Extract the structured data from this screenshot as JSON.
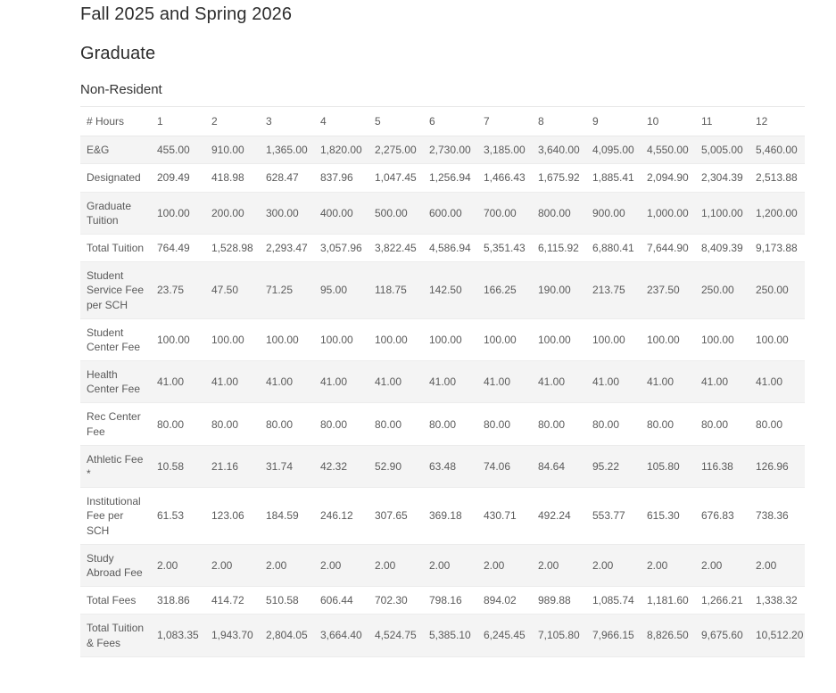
{
  "page": {
    "title": "Fall 2025 and Spring 2026",
    "level_heading": "Graduate",
    "residency_heading": "Non-Resident"
  },
  "colors": {
    "row_stripe": "#f4f4f4",
    "row_border": "#ececec",
    "table_text": "#5a5a5a",
    "heading_text": "#2d2d2d"
  },
  "table": {
    "header": [
      "# Hours",
      "1",
      "2",
      "3",
      "4",
      "5",
      "6",
      "7",
      "8",
      "9",
      "10",
      "11",
      "12"
    ],
    "rows": [
      {
        "label": "E&G",
        "values": [
          "455.00",
          "910.00",
          "1,365.00",
          "1,820.00",
          "2,275.00",
          "2,730.00",
          "3,185.00",
          "3,640.00",
          "4,095.00",
          "4,550.00",
          "5,005.00",
          "5,460.00"
        ]
      },
      {
        "label": "Designated",
        "values": [
          "209.49",
          "418.98",
          "628.47",
          "837.96",
          "1,047.45",
          "1,256.94",
          "1,466.43",
          "1,675.92",
          "1,885.41",
          "2,094.90",
          "2,304.39",
          "2,513.88"
        ]
      },
      {
        "label": "Graduate Tuition",
        "values": [
          "100.00",
          "200.00",
          "300.00",
          "400.00",
          "500.00",
          "600.00",
          "700.00",
          "800.00",
          "900.00",
          "1,000.00",
          "1,100.00",
          "1,200.00"
        ]
      },
      {
        "label": "Total Tuition",
        "values": [
          "764.49",
          "1,528.98",
          "2,293.47",
          "3,057.96",
          "3,822.45",
          "4,586.94",
          "5,351.43",
          "6,115.92",
          "6,880.41",
          "7,644.90",
          "8,409.39",
          "9,173.88"
        ]
      },
      {
        "label": "Student Service Fee per SCH",
        "values": [
          "23.75",
          "47.50",
          "71.25",
          "95.00",
          "118.75",
          "142.50",
          "166.25",
          "190.00",
          "213.75",
          "237.50",
          "250.00",
          "250.00"
        ]
      },
      {
        "label": "Student Center Fee",
        "values": [
          "100.00",
          "100.00",
          "100.00",
          "100.00",
          "100.00",
          "100.00",
          "100.00",
          "100.00",
          "100.00",
          "100.00",
          "100.00",
          "100.00"
        ]
      },
      {
        "label": "Health Center Fee",
        "values": [
          "41.00",
          "41.00",
          "41.00",
          "41.00",
          "41.00",
          "41.00",
          "41.00",
          "41.00",
          "41.00",
          "41.00",
          "41.00",
          "41.00"
        ]
      },
      {
        "label": "Rec Center Fee",
        "values": [
          "80.00",
          "80.00",
          "80.00",
          "80.00",
          "80.00",
          "80.00",
          "80.00",
          "80.00",
          "80.00",
          "80.00",
          "80.00",
          "80.00"
        ]
      },
      {
        "label": "Athletic Fee *",
        "values": [
          "10.58",
          "21.16",
          "31.74",
          "42.32",
          "52.90",
          "63.48",
          "74.06",
          "84.64",
          "95.22",
          "105.80",
          "116.38",
          "126.96"
        ]
      },
      {
        "label": "Institutional Fee per SCH",
        "values": [
          "61.53",
          "123.06",
          "184.59",
          "246.12",
          "307.65",
          "369.18",
          "430.71",
          "492.24",
          "553.77",
          "615.30",
          "676.83",
          "738.36"
        ]
      },
      {
        "label": "Study Abroad Fee",
        "values": [
          "2.00",
          "2.00",
          "2.00",
          "2.00",
          "2.00",
          "2.00",
          "2.00",
          "2.00",
          "2.00",
          "2.00",
          "2.00",
          "2.00"
        ]
      },
      {
        "label": "Total Fees",
        "values": [
          "318.86",
          "414.72",
          "510.58",
          "606.44",
          "702.30",
          "798.16",
          "894.02",
          "989.88",
          "1,085.74",
          "1,181.60",
          "1,266.21",
          "1,338.32"
        ]
      },
      {
        "label": "Total Tuition & Fees",
        "values": [
          "1,083.35",
          "1,943.70",
          "2,804.05",
          "3,664.40",
          "4,524.75",
          "5,385.10",
          "6,245.45",
          "7,105.80",
          "7,966.15",
          "8,826.50",
          "9,675.60",
          "10,512.20"
        ]
      }
    ]
  }
}
